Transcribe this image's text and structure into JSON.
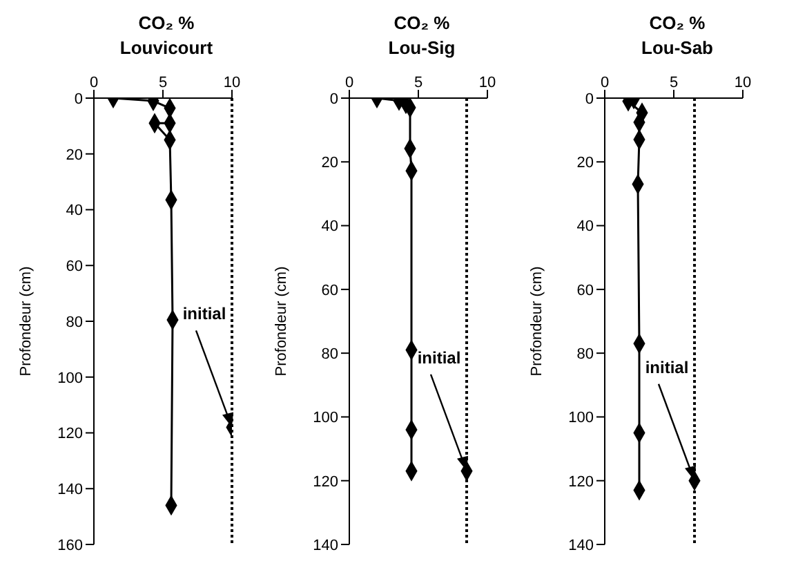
{
  "chart_data": [
    {
      "type": "line",
      "title": "CO₂ %",
      "subtitle": "Louvicourt",
      "ylabel": "Profondeur (cm)",
      "xlim": [
        0,
        10
      ],
      "xticks": [
        0,
        5,
        10
      ],
      "ylim": [
        160,
        0
      ],
      "yticks": [
        0,
        20,
        40,
        60,
        80,
        100,
        120,
        140,
        160
      ],
      "marker": "diamond",
      "line_style": "solid",
      "series": [
        {
          "color": "#000000",
          "x": [
            1.4,
            4.3,
            5.5,
            5.5,
            4.4,
            5.5,
            5.6,
            5.7,
            5.6
          ],
          "values": [
            0,
            1,
            3.6,
            9,
            9,
            15,
            36.5,
            79.5,
            146
          ]
        },
        {
          "type": "scatter",
          "color": "#000000",
          "x": [
            10
          ],
          "values": [
            118
          ]
        }
      ],
      "ref_lines": [
        {
          "axis": "x",
          "value": 10,
          "line_style": "dotted",
          "color": "#000000"
        }
      ],
      "annotations": [
        {
          "text": "initial",
          "x": 10,
          "y": 118
        }
      ]
    },
    {
      "type": "line",
      "title": "CO₂ %",
      "subtitle": "Lou-Sig",
      "ylabel": "Profondeur (cm)",
      "xlim": [
        0,
        10
      ],
      "xticks": [
        0,
        5,
        10
      ],
      "ylim": [
        140,
        0
      ],
      "yticks": [
        0,
        20,
        40,
        60,
        80,
        100,
        120,
        140
      ],
      "marker": "diamond",
      "line_style": "solid",
      "series": [
        {
          "color": "#000000",
          "x": [
            2.0,
            3.6,
            4.1,
            4.4,
            4.4,
            4.5,
            4.5,
            4.5,
            4.5
          ],
          "values": [
            0,
            0.8,
            1.8,
            3,
            15.8,
            22.8,
            79,
            104,
            117
          ]
        },
        {
          "type": "scatter",
          "color": "#000000",
          "x": [
            8.5
          ],
          "values": [
            117
          ]
        }
      ],
      "ref_lines": [
        {
          "axis": "x",
          "value": 8.5,
          "line_style": "dotted",
          "color": "#000000"
        }
      ],
      "annotations": [
        {
          "text": "initial",
          "x": 8.5,
          "y": 117
        }
      ]
    },
    {
      "type": "line",
      "title": "CO₂ %",
      "subtitle": "Lou-Sab",
      "ylabel": "Profondeur (cm)",
      "xlim": [
        0,
        10
      ],
      "xticks": [
        0,
        5,
        10
      ],
      "ylim": [
        140,
        0
      ],
      "yticks": [
        0,
        20,
        40,
        60,
        80,
        100,
        120,
        140
      ],
      "marker": "diamond",
      "line_style": "solid",
      "series": [
        {
          "color": "#000000",
          "x": [
            2.1,
            1.7,
            2.7,
            2.5,
            2.5,
            2.4,
            2.5,
            2.5,
            2.5
          ],
          "values": [
            0.3,
            1,
            4.6,
            7.6,
            13,
            27,
            77,
            105,
            123
          ]
        },
        {
          "type": "scatter",
          "color": "#000000",
          "x": [
            6.5
          ],
          "values": [
            120
          ]
        }
      ],
      "ref_lines": [
        {
          "axis": "x",
          "value": 6.5,
          "line_style": "dotted",
          "color": "#000000"
        }
      ],
      "annotations": [
        {
          "text": "initial",
          "x": 6.5,
          "y": 120
        }
      ]
    }
  ]
}
